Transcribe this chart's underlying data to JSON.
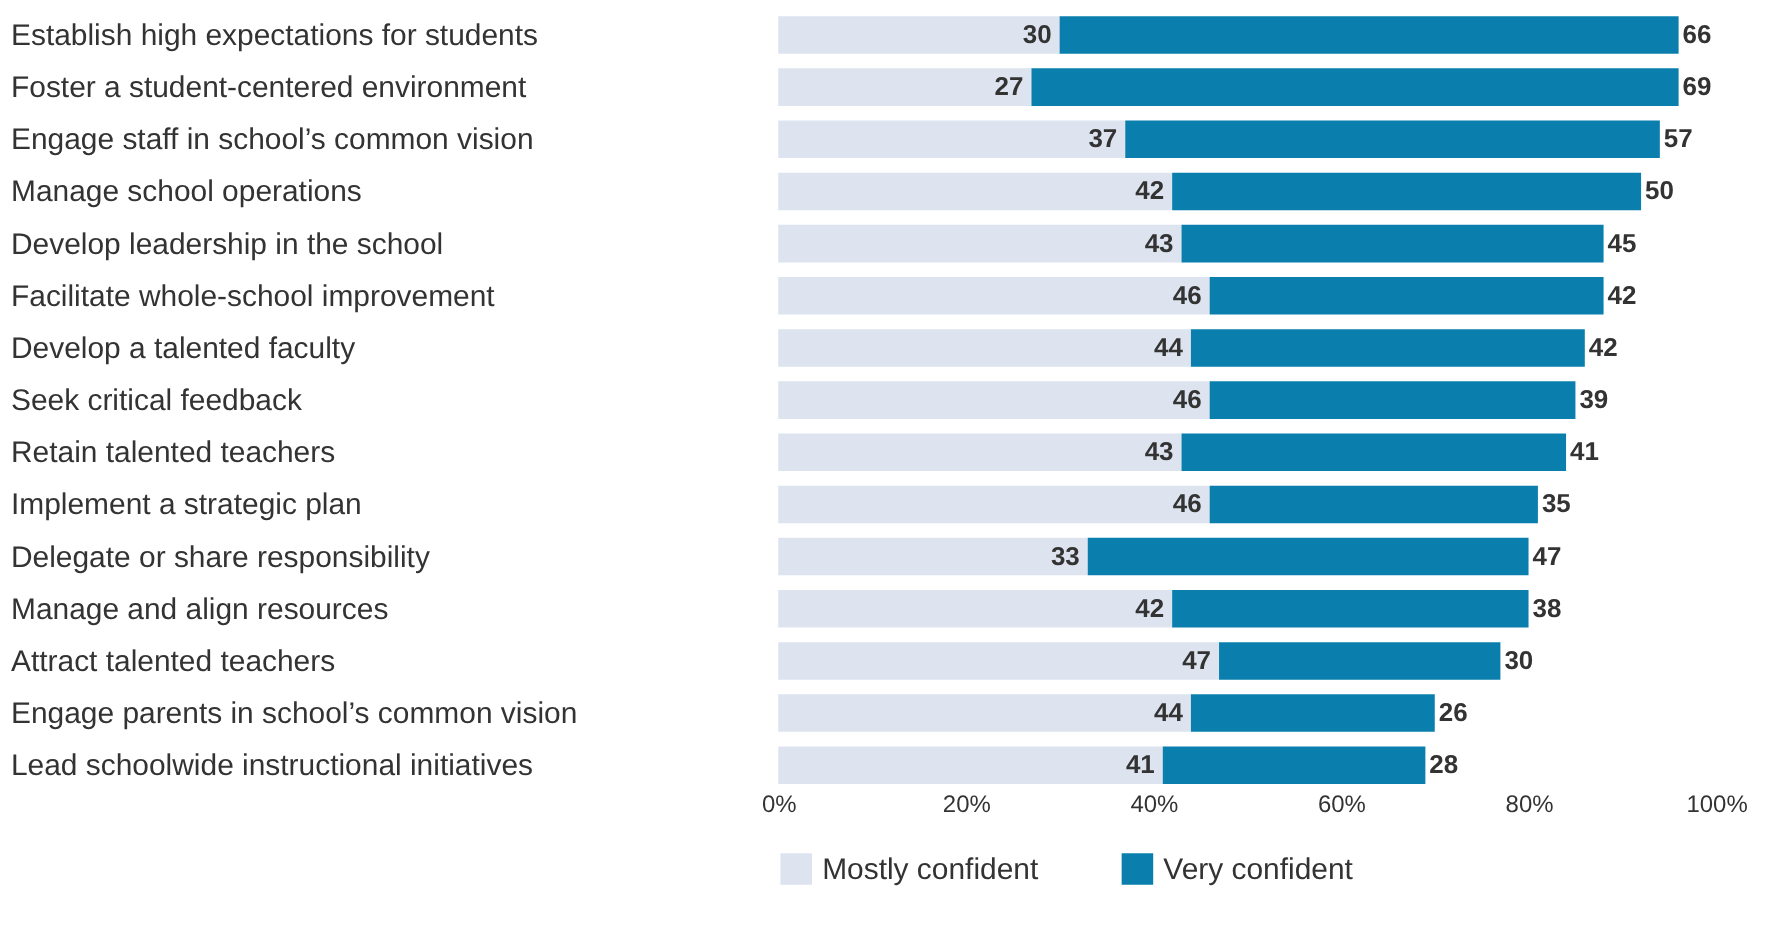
{
  "chart_data": {
    "type": "bar",
    "orientation": "horizontal",
    "stacked": true,
    "data_labels": true,
    "legend": "bottom",
    "grid": false,
    "categories": [
      "Establish high expectations for students",
      "Foster a student-centered environment",
      "Engage staff in school’s common vision",
      "Manage school operations",
      "Develop leadership in the school",
      "Facilitate whole-school improvement",
      "Develop a talented faculty",
      "Seek critical feedback",
      "Retain talented teachers",
      "Implement a strategic plan",
      "Delegate or share responsibility",
      "Manage and align resources",
      "Attract talented teachers",
      "Engage parents in school’s common vision",
      "Lead schoolwide instructional initiatives"
    ],
    "series": [
      {
        "name": "Mostly confident",
        "color": "#dde4ef",
        "values": [
          30,
          27,
          37,
          42,
          43,
          46,
          44,
          46,
          43,
          46,
          33,
          42,
          47,
          44,
          41
        ]
      },
      {
        "name": "Very confident",
        "color": "#0a7fae",
        "values": [
          66,
          69,
          57,
          50,
          45,
          42,
          42,
          39,
          41,
          35,
          47,
          38,
          30,
          26,
          28
        ]
      }
    ],
    "xlim": [
      0,
      100
    ],
    "xticks": [
      {
        "value": 0,
        "label": "0%"
      },
      {
        "value": 20,
        "label": "20%"
      },
      {
        "value": 40,
        "label": "40%"
      },
      {
        "value": 60,
        "label": "60%"
      },
      {
        "value": 80,
        "label": "80%"
      },
      {
        "value": 100,
        "label": "100%"
      }
    ]
  }
}
